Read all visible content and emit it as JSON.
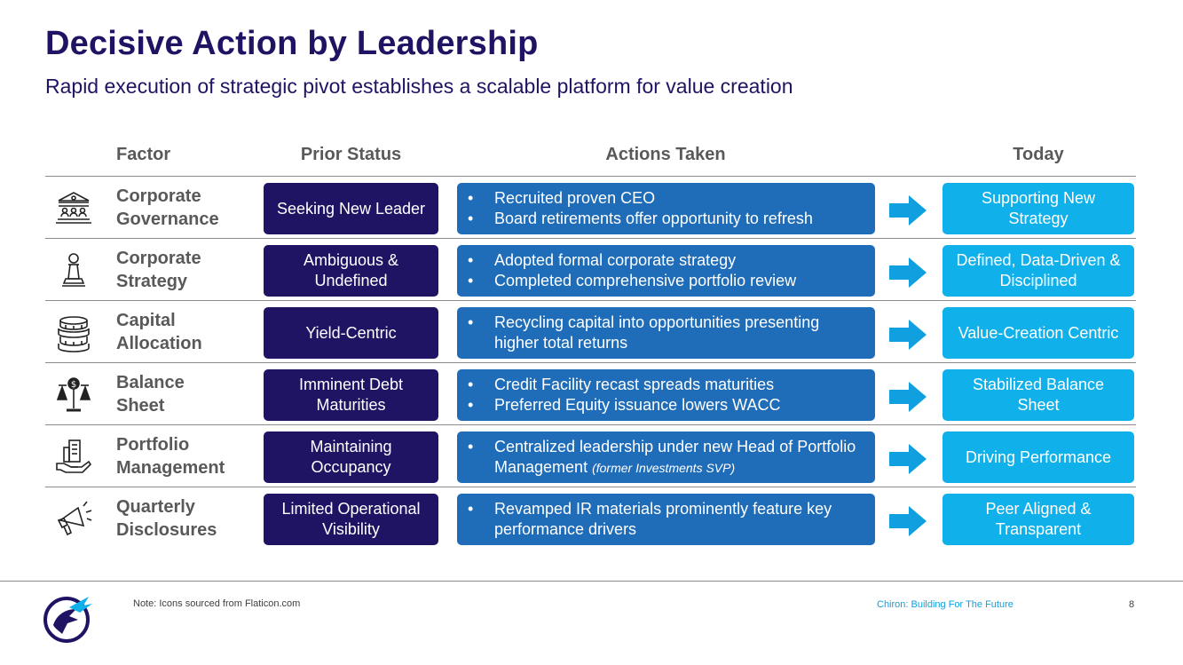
{
  "header": {
    "title": "Decisive Action by Leadership",
    "subtitle": "Rapid execution of strategic pivot establishes a scalable platform for value creation"
  },
  "columns": {
    "factor": "Factor",
    "prior": "Prior Status",
    "actions": "Actions Taken",
    "today": "Today"
  },
  "colors": {
    "title": "#1f1464",
    "prior_box": "#1f1464",
    "actions_box": "#1f6cb8",
    "today_box": "#10b0ea",
    "arrow": "#10a0e0"
  },
  "rows": [
    {
      "icon": "government-building-icon",
      "factor": [
        "Corporate",
        "Governance"
      ],
      "prior": "Seeking New Leader",
      "actions": [
        "Recruited proven CEO",
        "Board retirements offer opportunity to refresh"
      ],
      "today": "Supporting New Strategy"
    },
    {
      "icon": "chess-pawn-icon",
      "factor": [
        "Corporate",
        "Strategy"
      ],
      "prior": "Ambiguous & Undefined",
      "actions": [
        "Adopted formal corporate strategy",
        "Completed comprehensive portfolio review"
      ],
      "today": "Defined, Data-Driven & Disciplined"
    },
    {
      "icon": "coin-stack-icon",
      "factor": [
        "Capital",
        "Allocation"
      ],
      "prior": "Yield-Centric",
      "actions": [
        "Recycling capital into opportunities presenting higher total returns"
      ],
      "today": "Value-Creation Centric"
    },
    {
      "icon": "balance-scale-dollar-icon",
      "factor": [
        "Balance",
        "Sheet"
      ],
      "prior": "Imminent Debt Maturities",
      "actions": [
        "Credit Facility recast spreads maturities",
        "Preferred Equity issuance lowers WACC"
      ],
      "today": "Stabilized Balance Sheet"
    },
    {
      "icon": "hand-building-icon",
      "factor": [
        "Portfolio",
        "Management"
      ],
      "prior": "Maintaining Occupancy",
      "actions": [
        "Centralized leadership under new Head of Portfolio Management"
      ],
      "action_note": "(former Investments SVP)",
      "today": "Driving Performance"
    },
    {
      "icon": "megaphone-icon",
      "factor": [
        "Quarterly",
        "Disclosures"
      ],
      "prior": "Limited Operational Visibility",
      "actions": [
        "Revamped IR materials prominently feature key performance drivers"
      ],
      "today": "Peer Aligned & Transparent"
    }
  ],
  "footer": {
    "note": "Note: Icons sourced from Flaticon.com",
    "tagline": "Chiron: Building For The Future",
    "page": "8"
  }
}
